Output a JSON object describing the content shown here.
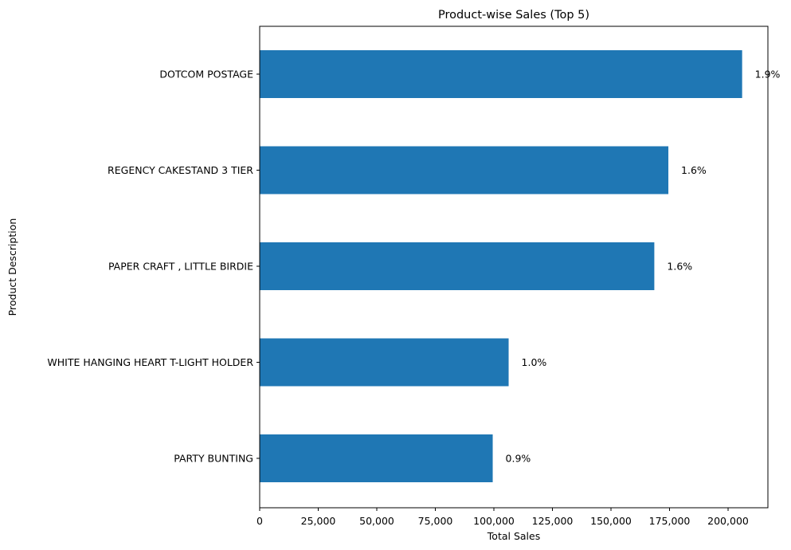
{
  "chart_data": {
    "type": "bar",
    "orientation": "horizontal",
    "title": "Product-wise Sales (Top 5)",
    "xlabel": "Total Sales",
    "ylabel": "Product Description",
    "xlim": [
      0,
      217000
    ],
    "x_ticks": [
      {
        "value": 0,
        "label": "0"
      },
      {
        "value": 25000,
        "label": "25,000"
      },
      {
        "value": 50000,
        "label": "50,000"
      },
      {
        "value": 75000,
        "label": "75,000"
      },
      {
        "value": 100000,
        "label": "100,000"
      },
      {
        "value": 125000,
        "label": "125,000"
      },
      {
        "value": 150000,
        "label": "150,000"
      },
      {
        "value": 175000,
        "label": "175,000"
      },
      {
        "value": 200000,
        "label": "200,000"
      }
    ],
    "categories": [
      "DOTCOM POSTAGE",
      "REGENCY CAKESTAND 3 TIER",
      "PAPER CRAFT , LITTLE BIRDIE",
      "WHITE HANGING HEART T-LIGHT HOLDER",
      "PARTY BUNTING"
    ],
    "values": [
      206000,
      174500,
      168500,
      106300,
      99500
    ],
    "data_labels": [
      "1.9%",
      "1.6%",
      "1.6%",
      "1.0%",
      "0.9%"
    ],
    "bar_color": "#1f77b4",
    "grid": false,
    "legend": "none"
  }
}
